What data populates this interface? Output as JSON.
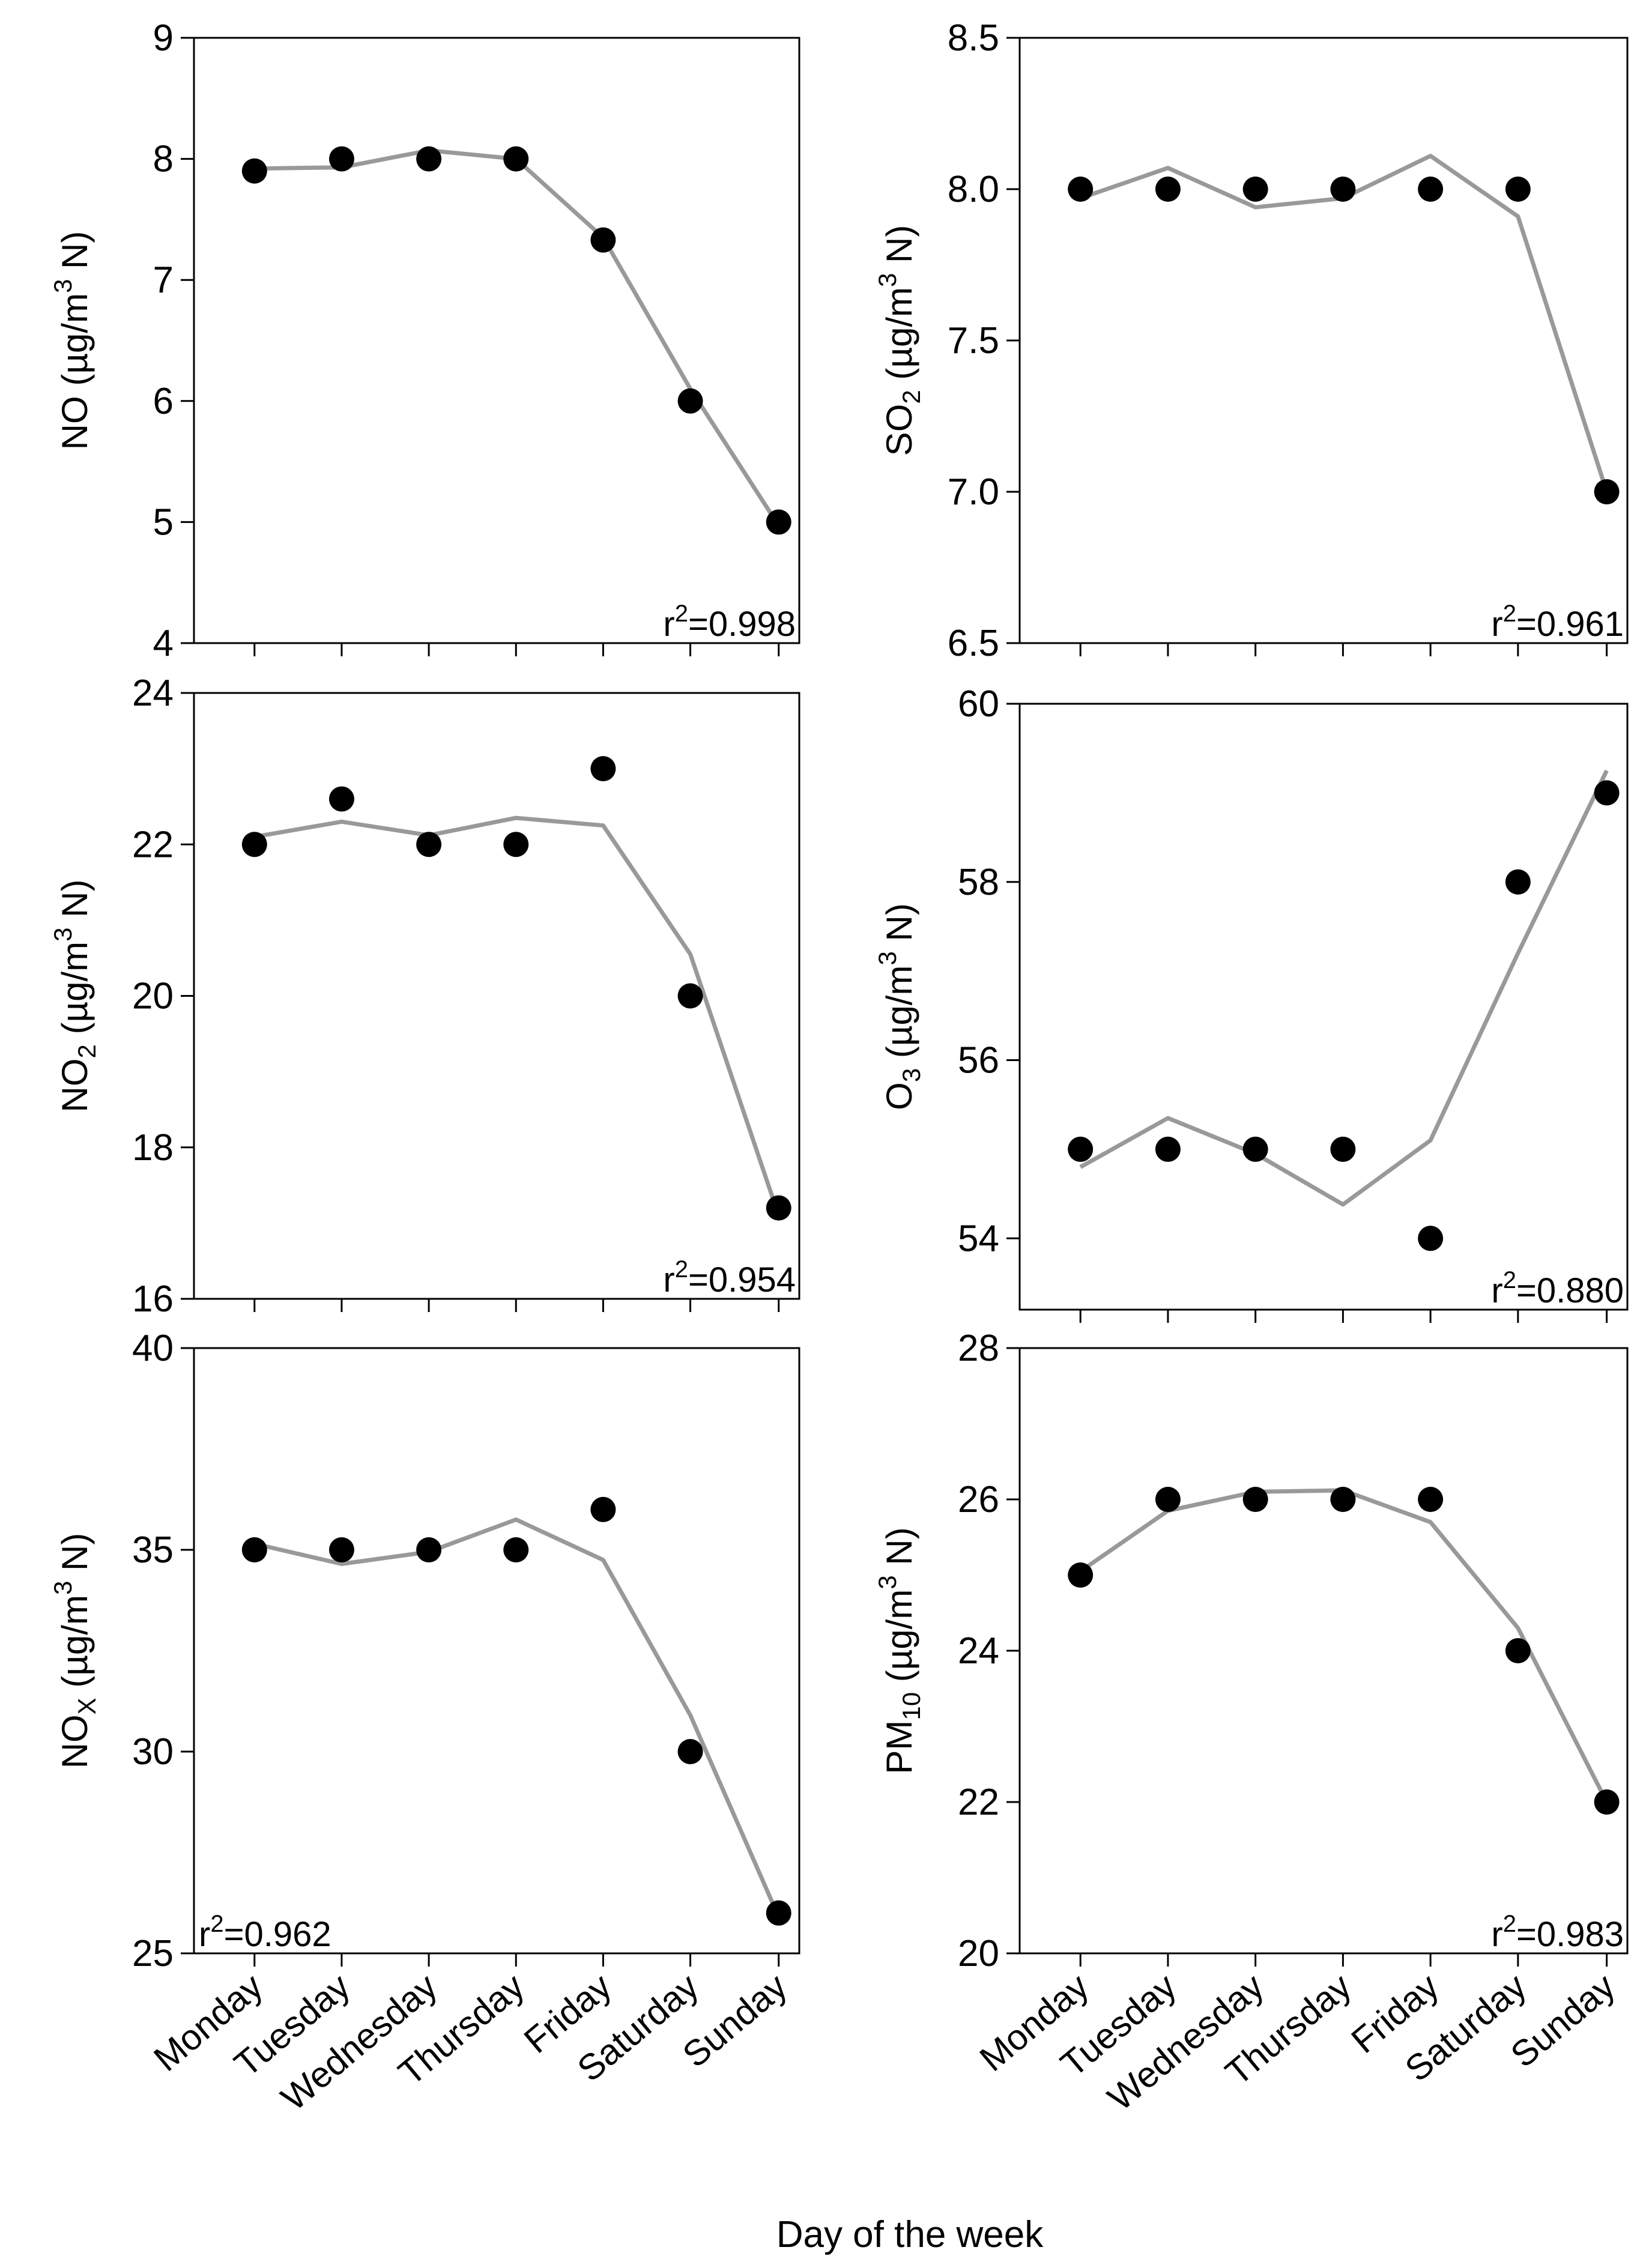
{
  "chart_data": [
    {
      "type": "scatter",
      "ylabel": "NO (µg/m³ N)",
      "ylabel_parts": {
        "pre": "NO (µg/m",
        "sup": "3",
        "post": " N)"
      },
      "xlabel": "Day of the week",
      "categories": [
        "Monday",
        "Tuesday",
        "Wednesday",
        "Thursday",
        "Friday",
        "Saturday",
        "Sunday"
      ],
      "ylim": [
        4,
        9
      ],
      "yticks": [
        "4",
        "5",
        "6",
        "7",
        "8",
        "9"
      ],
      "series": [
        {
          "name": "observed",
          "values": [
            7.9,
            8.0,
            8.0,
            8.0,
            7.33,
            6.0,
            5.0
          ]
        },
        {
          "name": "fit",
          "values": [
            7.92,
            7.93,
            8.07,
            8.0,
            7.35,
            6.1,
            4.97
          ]
        }
      ],
      "annotation": {
        "text": "r2=0.998",
        "pre": "r",
        "sup": "2",
        "post": "=0.998",
        "position": "bottom-right"
      }
    },
    {
      "type": "scatter",
      "ylabel": "SO2 (µg/m³ N)",
      "ylabel_parts": {
        "pre": "SO",
        "sub": "2",
        "mid": " (µg/m",
        "sup": "3",
        "post": " N)"
      },
      "xlabel": "Day of the week",
      "categories": [
        "Monday",
        "Tuesday",
        "Wednesday",
        "Thursday",
        "Friday",
        "Saturday",
        "Sunday"
      ],
      "ylim": [
        6.5,
        8.5
      ],
      "yticks": [
        "6.5",
        "7.0",
        "7.5",
        "8.0",
        "8.5"
      ],
      "series": [
        {
          "name": "observed",
          "values": [
            8.0,
            8.0,
            8.0,
            8.0,
            8.0,
            8.0,
            7.0
          ]
        },
        {
          "name": "fit",
          "values": [
            7.97,
            8.07,
            7.94,
            7.97,
            8.11,
            7.91,
            7.0
          ]
        }
      ],
      "annotation": {
        "text": "r2=0.961",
        "pre": "r",
        "sup": "2",
        "post": "=0.961",
        "position": "bottom-right"
      }
    },
    {
      "type": "scatter",
      "ylabel": "NO2 (µg/m³ N)",
      "ylabel_parts": {
        "pre": "NO",
        "sub": "2",
        "mid": " (µg/m",
        "sup": "3",
        "post": " N)"
      },
      "xlabel": "Day of the week",
      "categories": [
        "Monday",
        "Tuesday",
        "Wednesday",
        "Thursday",
        "Friday",
        "Saturday",
        "Sunday"
      ],
      "ylim": [
        16,
        24
      ],
      "yticks": [
        "16",
        "18",
        "20",
        "22",
        "24"
      ],
      "series": [
        {
          "name": "observed",
          "values": [
            22.0,
            22.6,
            22.0,
            22.0,
            23.0,
            20.0,
            17.2
          ]
        },
        {
          "name": "fit",
          "values": [
            22.1,
            22.3,
            22.12,
            22.35,
            22.25,
            20.55,
            17.1
          ]
        }
      ],
      "annotation": {
        "text": "r2=0.954",
        "pre": "r",
        "sup": "2",
        "post": "=0.954",
        "position": "bottom-right"
      }
    },
    {
      "type": "scatter",
      "ylabel": "O3 (µg/m³ N)",
      "ylabel_parts": {
        "pre": "O",
        "sub": "3",
        "mid": " (µg/m",
        "sup": "3",
        "post": " N)"
      },
      "xlabel": "Day of the week",
      "categories": [
        "Monday",
        "Tuesday",
        "Wednesday",
        "Thursday",
        "Friday",
        "Saturday",
        "Sunday"
      ],
      "ylim": [
        53.2,
        60
      ],
      "yticks": [
        "54",
        "56",
        "58",
        "60"
      ],
      "series": [
        {
          "name": "observed",
          "values": [
            55.0,
            55.0,
            55.0,
            55.0,
            54.0,
            58.0,
            59.0
          ]
        },
        {
          "name": "fit",
          "values": [
            54.8,
            55.35,
            54.95,
            54.38,
            55.1,
            57.2,
            59.25
          ]
        }
      ],
      "annotation": {
        "text": "r2=0.880",
        "pre": "r",
        "sup": "2",
        "post": "=0.880",
        "position": "bottom-right"
      }
    },
    {
      "type": "scatter",
      "ylabel": "NOX (µg/m³ N)",
      "ylabel_parts": {
        "pre": "NO",
        "sub": "X",
        "mid": " (µg/m",
        "sup": "3",
        "post": " N)"
      },
      "xlabel": "Day of the week",
      "categories": [
        "Monday",
        "Tuesday",
        "Wednesday",
        "Thursday",
        "Friday",
        "Saturday",
        "Sunday"
      ],
      "ylim": [
        25,
        40
      ],
      "yticks": [
        "25",
        "30",
        "35",
        "40"
      ],
      "series": [
        {
          "name": "observed",
          "values": [
            35.0,
            35.0,
            35.0,
            35.0,
            36.0,
            30.0,
            26.0
          ]
        },
        {
          "name": "fit",
          "values": [
            35.15,
            34.65,
            34.95,
            35.75,
            34.75,
            30.9,
            25.9
          ]
        }
      ],
      "annotation": {
        "text": "r2=0.962",
        "pre": "r",
        "sup": "2",
        "post": "=0.962",
        "position": "bottom-left"
      }
    },
    {
      "type": "scatter",
      "ylabel": "PM10 (µg/m³ N)",
      "ylabel_parts": {
        "pre": "PM",
        "sub": "10",
        "mid": " (µg/m",
        "sup": "3",
        "post": " N)"
      },
      "xlabel": "Day of the week",
      "categories": [
        "Monday",
        "Tuesday",
        "Wednesday",
        "Thursday",
        "Friday",
        "Saturday",
        "Sunday"
      ],
      "ylim": [
        20,
        28
      ],
      "yticks": [
        "20",
        "22",
        "24",
        "26",
        "28"
      ],
      "series": [
        {
          "name": "observed",
          "values": [
            25.0,
            26.0,
            26.0,
            26.0,
            26.0,
            24.0,
            22.0
          ]
        },
        {
          "name": "fit",
          "values": [
            25.05,
            25.85,
            26.1,
            26.12,
            25.7,
            24.3,
            22.0
          ]
        }
      ],
      "annotation": {
        "text": "r2=0.983",
        "pre": "r",
        "sup": "2",
        "post": "=0.983",
        "position": "bottom-right"
      }
    }
  ],
  "figure": {
    "xlabel": "Day of the week",
    "colors": {
      "points": "#000000",
      "fit_line": "#999999",
      "axes": "#000000"
    }
  }
}
